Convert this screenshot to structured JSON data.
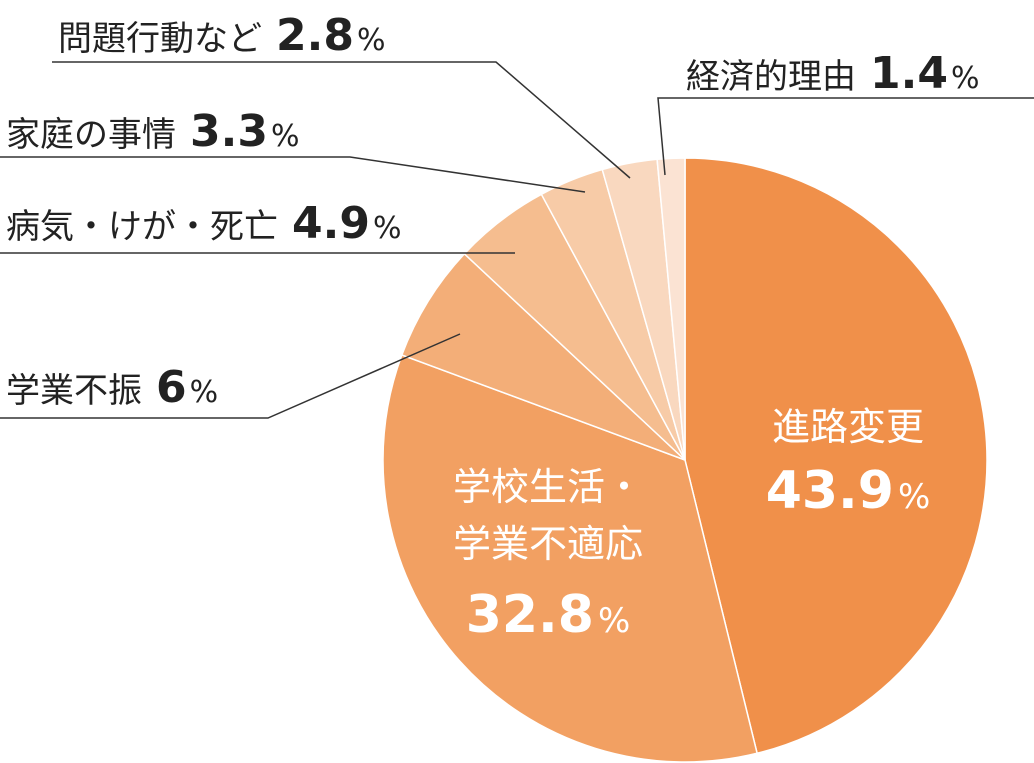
{
  "chart_data": {
    "type": "pie",
    "unit": "%",
    "slices": [
      {
        "label": "進路変更",
        "label_lines": [
          "進路変更"
        ],
        "value": 43.9,
        "color": "#F0904A",
        "label_position": "inside"
      },
      {
        "label": "学校生活・学業不適応",
        "label_lines": [
          "学校生活・",
          "学業不適応"
        ],
        "value": 32.8,
        "color": "#F2A062",
        "label_position": "inside"
      },
      {
        "label": "学業不振",
        "label_lines": [
          "学業不振"
        ],
        "value": 6,
        "color": "#F3AE78",
        "label_position": "outside"
      },
      {
        "label": "病気・けが・死亡",
        "label_lines": [
          "病気・けが・死亡"
        ],
        "value": 4.9,
        "color": "#F5BD8F",
        "label_position": "outside"
      },
      {
        "label": "家庭の事情",
        "label_lines": [
          "家庭の事情"
        ],
        "value": 3.3,
        "color": "#F7CBA7",
        "label_position": "outside"
      },
      {
        "label": "問題行動など",
        "label_lines": [
          "問題行動など"
        ],
        "value": 2.8,
        "color": "#F9D8BF",
        "label_position": "outside"
      },
      {
        "label": "経済的理由",
        "label_lines": [
          "経済的理由"
        ],
        "value": 1.4,
        "color": "#FBE3D3",
        "label_position": "outside"
      }
    ],
    "start": "12 o'clock",
    "direction": "clockwise",
    "legend": "none",
    "slice_border_color": "#ffffff",
    "leader_line_color": "#333333"
  }
}
